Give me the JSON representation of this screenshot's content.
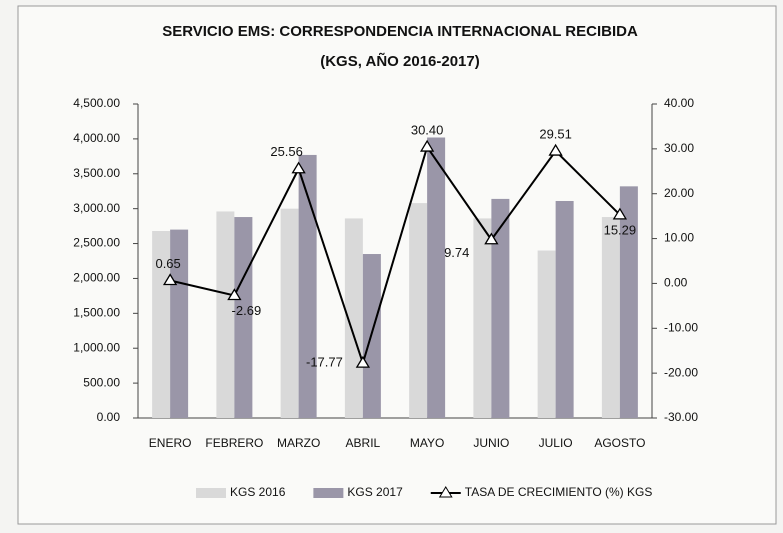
{
  "chart_data": {
    "type": "bar_line",
    "title": "SERVICIO EMS: CORRESPONDENCIA INTERNACIONAL RECIBIDA",
    "subtitle": "(KGS, AÑO 2016-2017)",
    "categories": [
      "ENERO",
      "FEBRERO",
      "MARZO",
      "ABRIL",
      "MAYO",
      "JUNIO",
      "JULIO",
      "AGOSTO"
    ],
    "series": [
      {
        "name": "KGS 2016",
        "color": "#d9d9d9",
        "type": "bar",
        "values": [
          2680,
          2960,
          3000,
          2860,
          3080,
          2860,
          2400,
          2880
        ]
      },
      {
        "name": "KGS 2017",
        "color": "#9a96a8",
        "type": "bar",
        "values": [
          2700,
          2880,
          3770,
          2350,
          4020,
          3140,
          3110,
          3320
        ]
      },
      {
        "name": "TASA DE CRECIMIENTO (%) KGS",
        "color": "#000000",
        "type": "line",
        "axis": "y2",
        "values": [
          0.65,
          -2.69,
          25.56,
          -17.77,
          30.4,
          9.74,
          29.51,
          15.29
        ],
        "value_labels": [
          "0.65",
          "-2.69",
          "25.56",
          "-17.77",
          "30.40",
          "9.74",
          "29.51",
          "15.29"
        ]
      }
    ],
    "ylim": [
      0,
      4500
    ],
    "yticks": [
      {
        "value": 0,
        "label": "0.00"
      },
      {
        "value": 500,
        "label": "500.00"
      },
      {
        "value": 1000,
        "label": "1,000.00"
      },
      {
        "value": 1500,
        "label": "1,500.00"
      },
      {
        "value": 2000,
        "label": "2,000.00"
      },
      {
        "value": 2500,
        "label": "2,500.00"
      },
      {
        "value": 3000,
        "label": "3,000.00"
      },
      {
        "value": 3500,
        "label": "3,500.00"
      },
      {
        "value": 4000,
        "label": "4,000.00"
      },
      {
        "value": 4500,
        "label": "4,500.00"
      }
    ],
    "y2lim": [
      -30,
      40
    ],
    "y2ticks": [
      {
        "value": -30,
        "label": "-30.00"
      },
      {
        "value": -20,
        "label": "-20.00"
      },
      {
        "value": -10,
        "label": "-10.00"
      },
      {
        "value": 0,
        "label": "0.00"
      },
      {
        "value": 10,
        "label": "10.00"
      },
      {
        "value": 20,
        "label": "20.00"
      },
      {
        "value": 30,
        "label": "30.00"
      },
      {
        "value": 40,
        "label": "40.00"
      }
    ],
    "legend": "bottom"
  }
}
